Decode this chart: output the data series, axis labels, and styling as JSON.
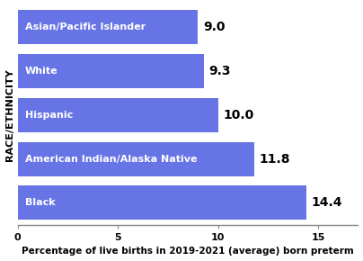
{
  "categories": [
    "Black",
    "American Indian/Alaska Native",
    "Hispanic",
    "White",
    "Asian/Pacific Islander"
  ],
  "values": [
    14.4,
    11.8,
    10.0,
    9.3,
    9.0
  ],
  "bar_color": "#6674E5",
  "label_color_inside": "#ffffff",
  "value_color": "#000000",
  "ylabel": "RACE/ETHNICITY",
  "xlabel": "Percentage of live births in 2019-2021 (average) born preterm",
  "xlim": [
    0,
    17
  ],
  "xticks": [
    0,
    5,
    10,
    15
  ],
  "background_color": "#ffffff",
  "bar_height": 0.78,
  "value_fontsize": 10,
  "label_fontsize": 8,
  "xlabel_fontsize": 7.5,
  "ylabel_fontsize": 8
}
